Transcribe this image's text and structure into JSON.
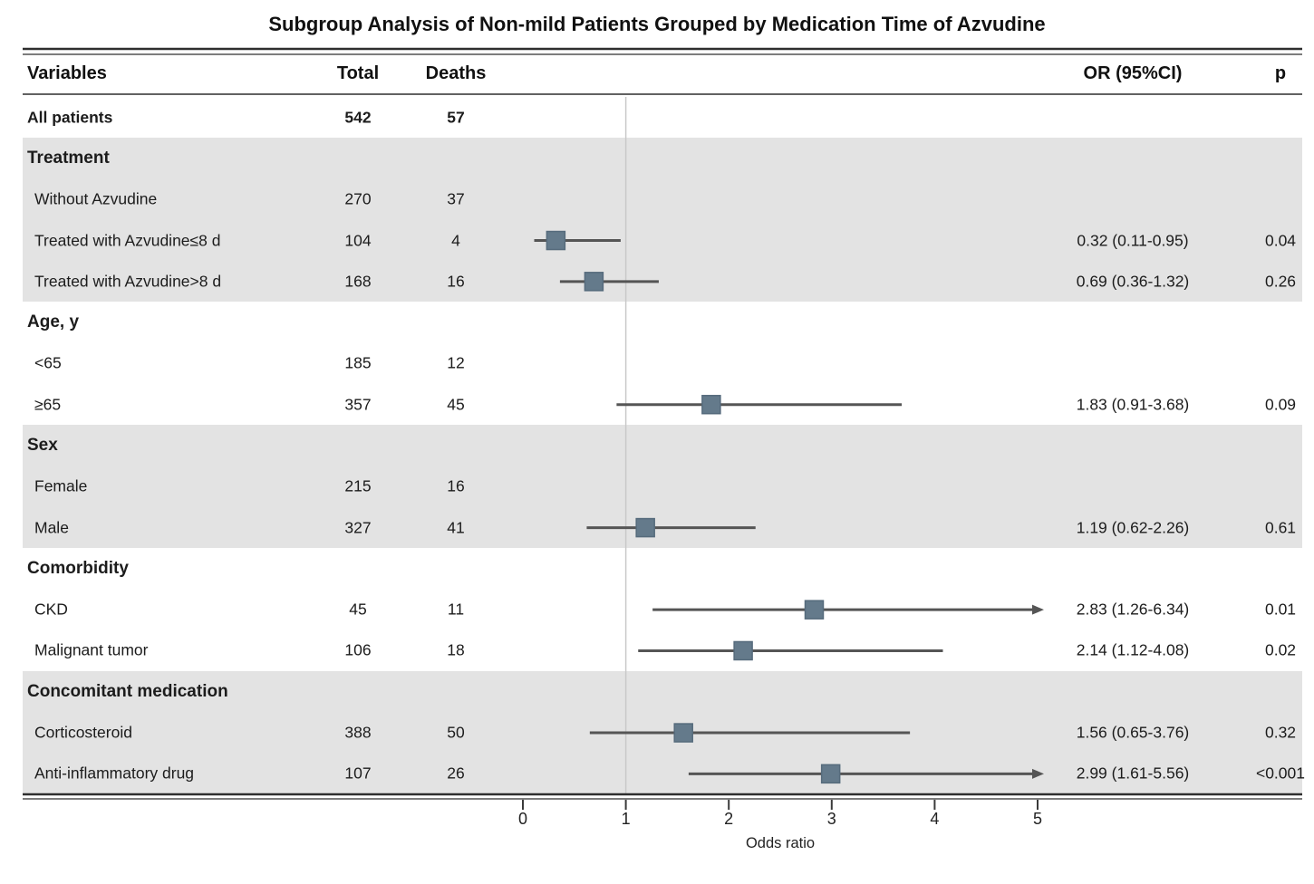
{
  "title": "Subgroup Analysis of Non-mild Patients Grouped by Medication Time of Azvudine",
  "header": {
    "variables": "Variables",
    "total": "Total",
    "deaths": "Deaths",
    "or_ci": "OR  (95%CI)",
    "p": "p"
  },
  "colors": {
    "marker": "#647a8b",
    "marker_border": "#566b7c",
    "ci_line": "#555555",
    "band": "#e3e3e3",
    "reference_line": "#c9c9c9",
    "axis": "#2e2e2e",
    "text": "#1c1c1c"
  },
  "chart_data": {
    "type": "forest",
    "title": "Subgroup Analysis of Non-mild Patients Grouped by Medication Time of Azvudine",
    "xlabel": "Odds ratio",
    "x_ticks": [
      0,
      1,
      2,
      3,
      4,
      5
    ],
    "xlim": [
      0,
      5
    ],
    "reference_line": 1,
    "legend_position": "none",
    "grid": false,
    "clip_note": "Confidence intervals extending beyond x=5 are clipped and drawn with a right arrow",
    "columns": [
      "Variables",
      "Total",
      "Deaths",
      "OR (95%CI)",
      "p"
    ],
    "rows": [
      {
        "kind": "data",
        "label": "All patients",
        "bold": true,
        "band": false,
        "total": "542",
        "deaths": "57",
        "or": null,
        "lo": null,
        "hi": null,
        "or_text": "",
        "p": "",
        "arrow": false
      },
      {
        "kind": "group",
        "label": "Treatment",
        "bold": true,
        "band": true,
        "total": "",
        "deaths": "",
        "or": null,
        "lo": null,
        "hi": null,
        "or_text": "",
        "p": "",
        "arrow": false
      },
      {
        "kind": "data",
        "label": "Without Azvudine",
        "bold": false,
        "band": true,
        "total": "270",
        "deaths": "37",
        "or": null,
        "lo": null,
        "hi": null,
        "or_text": "",
        "p": "",
        "arrow": false
      },
      {
        "kind": "data",
        "label": "Treated with Azvudine≤8 d",
        "bold": false,
        "band": true,
        "total": "104",
        "deaths": "4",
        "or": 0.32,
        "lo": 0.11,
        "hi": 0.95,
        "or_text": "0.32 (0.11-0.95)",
        "p": "0.04",
        "arrow": false
      },
      {
        "kind": "data",
        "label": "Treated with Azvudine>8 d",
        "bold": false,
        "band": true,
        "total": "168",
        "deaths": "16",
        "or": 0.69,
        "lo": 0.36,
        "hi": 1.32,
        "or_text": "0.69 (0.36-1.32)",
        "p": "0.26",
        "arrow": false
      },
      {
        "kind": "group",
        "label": "Age, y",
        "bold": true,
        "band": false,
        "total": "",
        "deaths": "",
        "or": null,
        "lo": null,
        "hi": null,
        "or_text": "",
        "p": "",
        "arrow": false
      },
      {
        "kind": "data",
        "label": "<65",
        "bold": false,
        "band": false,
        "total": "185",
        "deaths": "12",
        "or": null,
        "lo": null,
        "hi": null,
        "or_text": "",
        "p": "",
        "arrow": false
      },
      {
        "kind": "data",
        "label": "≥65",
        "bold": false,
        "band": false,
        "total": "357",
        "deaths": "45",
        "or": 1.83,
        "lo": 0.91,
        "hi": 3.68,
        "or_text": "1.83 (0.91-3.68)",
        "p": "0.09",
        "arrow": false
      },
      {
        "kind": "group",
        "label": "Sex",
        "bold": true,
        "band": true,
        "total": "",
        "deaths": "",
        "or": null,
        "lo": null,
        "hi": null,
        "or_text": "",
        "p": "",
        "arrow": false
      },
      {
        "kind": "data",
        "label": "Female",
        "bold": false,
        "band": true,
        "total": "215",
        "deaths": "16",
        "or": null,
        "lo": null,
        "hi": null,
        "or_text": "",
        "p": "",
        "arrow": false
      },
      {
        "kind": "data",
        "label": "Male",
        "bold": false,
        "band": true,
        "total": "327",
        "deaths": "41",
        "or": 1.19,
        "lo": 0.62,
        "hi": 2.26,
        "or_text": "1.19 (0.62-2.26)",
        "p": "0.61",
        "arrow": false
      },
      {
        "kind": "group",
        "label": "Comorbidity",
        "bold": true,
        "band": false,
        "total": "",
        "deaths": "",
        "or": null,
        "lo": null,
        "hi": null,
        "or_text": "",
        "p": "",
        "arrow": false
      },
      {
        "kind": "data",
        "label": "CKD",
        "bold": false,
        "band": false,
        "total": "45",
        "deaths": "11",
        "or": 2.83,
        "lo": 1.26,
        "hi": 6.34,
        "or_text": "2.83 (1.26-6.34)",
        "p": "0.01",
        "arrow": true
      },
      {
        "kind": "data",
        "label": "Malignant tumor",
        "bold": false,
        "band": false,
        "total": "106",
        "deaths": "18",
        "or": 2.14,
        "lo": 1.12,
        "hi": 4.08,
        "or_text": "2.14 (1.12-4.08)",
        "p": "0.02",
        "arrow": false
      },
      {
        "kind": "group",
        "label": "Concomitant medication",
        "bold": true,
        "band": true,
        "total": "",
        "deaths": "",
        "or": null,
        "lo": null,
        "hi": null,
        "or_text": "",
        "p": "",
        "arrow": false
      },
      {
        "kind": "data",
        "label": "Corticosteroid",
        "bold": false,
        "band": true,
        "total": "388",
        "deaths": "50",
        "or": 1.56,
        "lo": 0.65,
        "hi": 3.76,
        "or_text": "1.56 (0.65-3.76)",
        "p": "0.32",
        "arrow": false
      },
      {
        "kind": "data",
        "label": "Anti-inflammatory drug",
        "bold": false,
        "band": true,
        "total": "107",
        "deaths": "26",
        "or": 2.99,
        "lo": 1.61,
        "hi": 5.56,
        "or_text": "2.99 (1.61-5.56)",
        "p": "<0.001",
        "arrow": true
      }
    ]
  }
}
